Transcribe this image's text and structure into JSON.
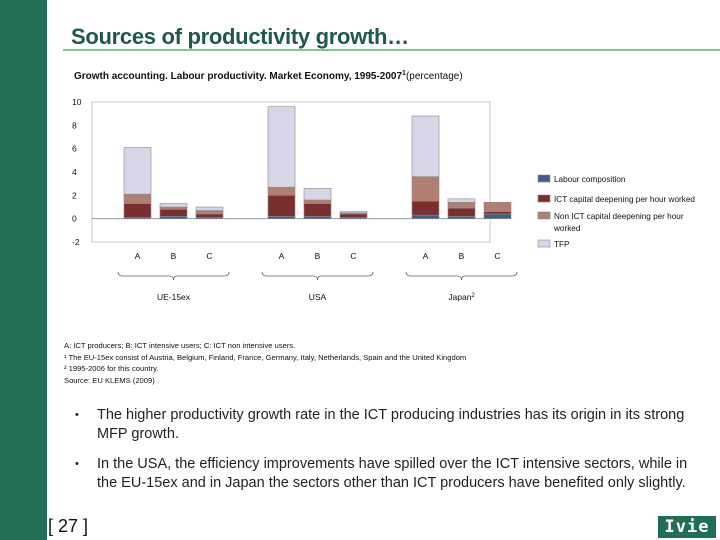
{
  "page": {
    "title": "Sources of productivity growth…",
    "page_number": "[ 27 ]",
    "logo_text": "Ivie"
  },
  "chart_data": {
    "type": "bar",
    "stacked": true,
    "title": "Growth accounting. Labour productivity. Market Economy, 1995-2007",
    "title_superscript": "1",
    "title_suffix": "(percentage)",
    "ylim": [
      -2,
      10
    ],
    "yticks": [
      10,
      8,
      6,
      4,
      2,
      0,
      -2
    ],
    "grid": false,
    "legend_position": "right",
    "groups": [
      {
        "label": "UE-15ex",
        "categories": [
          "A",
          "B",
          "C"
        ]
      },
      {
        "label": "USA",
        "categories": [
          "A",
          "B",
          "C"
        ]
      },
      {
        "label": "Japan",
        "label_superscript": "2",
        "categories": [
          "A",
          "B",
          "C"
        ]
      }
    ],
    "series": [
      {
        "name": "Labour composition",
        "color": "#3d5f8a",
        "values": [
          0.1,
          0.2,
          0.1,
          0.2,
          0.2,
          0.1,
          0.3,
          0.2,
          0.4
        ]
      },
      {
        "name": "ICT capital deepening per hour worked",
        "color": "#7a2e2e",
        "values": [
          1.2,
          0.6,
          0.3,
          1.8,
          1.1,
          0.3,
          1.2,
          0.7,
          0.2
        ]
      },
      {
        "name": "Non ICT capital deepening per hour worked",
        "color": "#b07f72",
        "values": [
          0.8,
          0.2,
          0.3,
          0.7,
          0.3,
          0.1,
          2.1,
          0.5,
          0.8
        ]
      },
      {
        "name": "TFP",
        "color": "#d8d5e6",
        "values": [
          4.0,
          0.3,
          0.3,
          6.9,
          1.0,
          0.1,
          5.2,
          0.3,
          0.0
        ]
      }
    ]
  },
  "notes": [
    "A: ICT producers; B: ICT intensive users; C: ICT non intensive users.",
    "¹ The EU-15ex consist of Austria, Belgium, Finland, France, Germany, Italy, Netherlands, Spain and the United Kingdom",
    "² 1995-2006 for this country.",
    "Source: EU KLEMS (2009) ."
  ],
  "bullets": [
    "The higher productivity growth rate in the ICT producing industries has its origin in its strong MFP growth.",
    "In the USA, the efficiency improvements have spilled over the ICT intensive sectors, while in the EU-15ex and in Japan the sectors other than ICT producers have benefited only slightly."
  ],
  "icons": {
    "bullet": "bullet-dot-icon"
  }
}
